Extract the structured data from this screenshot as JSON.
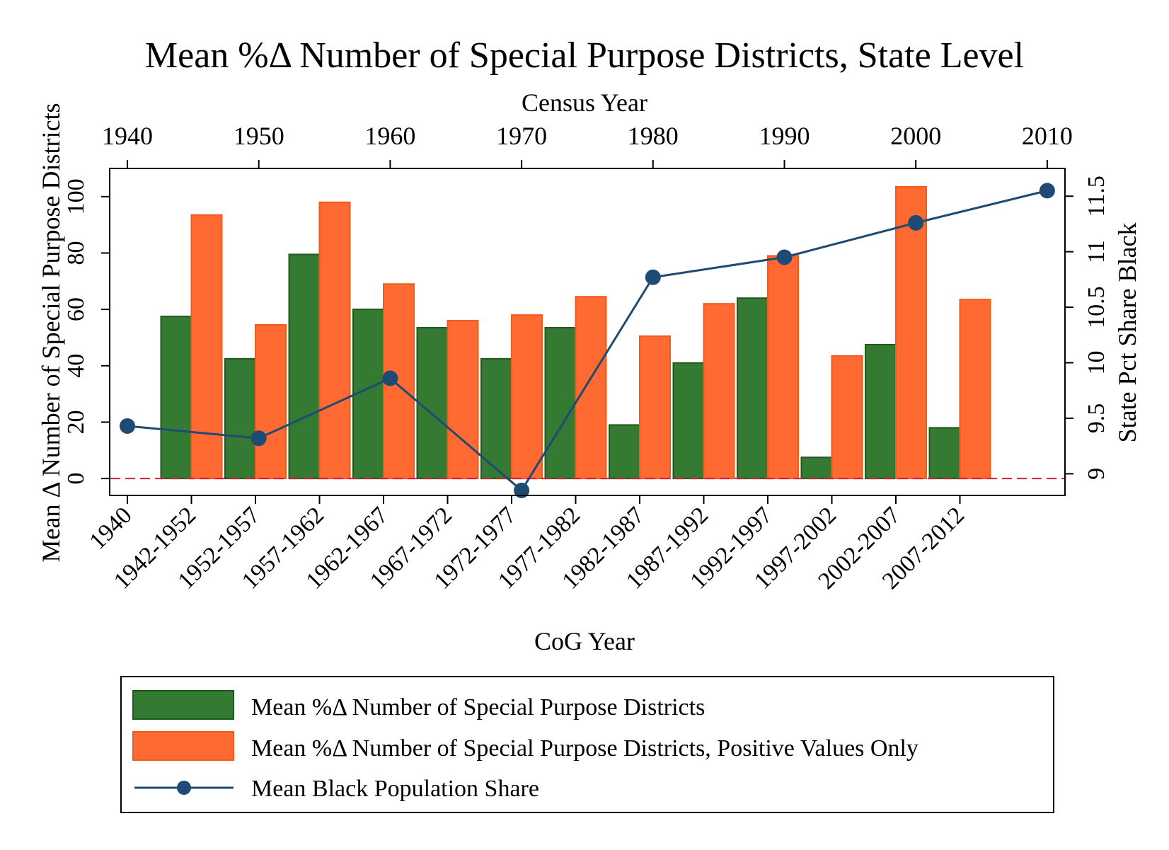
{
  "chart_data": {
    "type": "bar",
    "title": "Mean %Δ Number of Special Purpose Districts, State Level",
    "xlabel": "CoG Year",
    "x2label": "Census Year",
    "ylabel": "Mean Δ Number of Special Purpose Districts",
    "y2label": "State Pct Share Black",
    "categories": [
      "1942-1952",
      "1952-1957",
      "1957-1962",
      "1962-1967",
      "1967-1972",
      "1972-1977",
      "1977-1982",
      "1982-1987",
      "1987-1992",
      "1992-1997",
      "1997-2002",
      "2002-2007",
      "2007-2012"
    ],
    "bottom_ticks": [
      "1940",
      "1942-1952",
      "1952-1957",
      "1957-1962",
      "1962-1967",
      "1967-1972",
      "1972-1977",
      "1977-1982",
      "1982-1987",
      "1987-1992",
      "1992-1997",
      "1997-2002",
      "2002-2007",
      "2007-2012"
    ],
    "top_ticks": [
      "1940",
      "1950",
      "1960",
      "1970",
      "1980",
      "1990",
      "2000",
      "2010"
    ],
    "series": [
      {
        "name": "Mean %Δ Number of Special Purpose Districts",
        "color": "#357a32",
        "edge": "#1f5a1c",
        "values": [
          57.5,
          42.5,
          79.5,
          60,
          53.5,
          42.5,
          53.5,
          19,
          41,
          64,
          7.5,
          47.5,
          18
        ]
      },
      {
        "name": "Mean %Δ Number of Special Purpose Districts, Positive Values Only",
        "color": "#ff6a33",
        "edge": "#f05a1a",
        "values": [
          93.5,
          54.5,
          98,
          69,
          56,
          58,
          64.5,
          50.5,
          62,
          79,
          43.5,
          103.5,
          63.5
        ]
      }
    ],
    "line": {
      "name": "Mean Black Population Share",
      "color": "#1f4a73",
      "x": [
        1940,
        1950,
        1960,
        1970,
        1980,
        1990,
        2000,
        2010
      ],
      "y": [
        9.43,
        9.32,
        9.86,
        8.85,
        10.77,
        10.95,
        11.26,
        11.55
      ]
    },
    "y_ticks": [
      "0",
      "20",
      "40",
      "60",
      "80",
      "100"
    ],
    "y2_ticks": [
      "9",
      "9.5",
      "10",
      "10.5",
      "11",
      "11.5"
    ],
    "ylim": [
      -6,
      110
    ],
    "y2lim": [
      8.805,
      11.75
    ],
    "reference_line_y": 0,
    "legend": "bottom"
  }
}
